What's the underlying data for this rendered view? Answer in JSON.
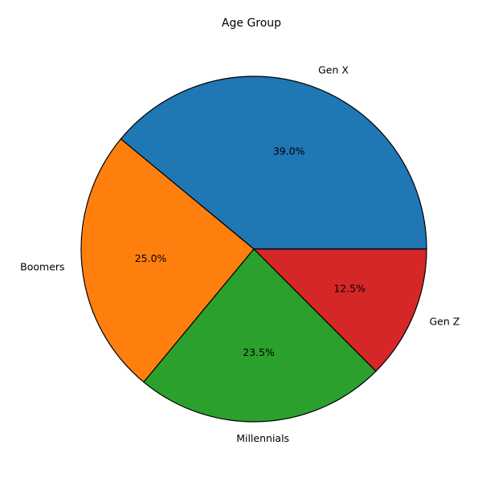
{
  "chart_data": {
    "type": "pie",
    "title": "Age Group",
    "slices": [
      {
        "label": "Gen X",
        "value": 39.0,
        "pct_label": "39.0%",
        "color": "#1f77b4"
      },
      {
        "label": "Boomers",
        "value": 25.0,
        "pct_label": "25.0%",
        "color": "#ff7f0e"
      },
      {
        "label": "Millennials",
        "value": 23.5,
        "pct_label": "23.5%",
        "color": "#2ca02c"
      },
      {
        "label": "Gen Z",
        "value": 12.5,
        "pct_label": "12.5%",
        "color": "#d62728"
      }
    ],
    "start_angle_deg": 0,
    "direction": "counterclockwise",
    "edge_color": "#000000"
  }
}
